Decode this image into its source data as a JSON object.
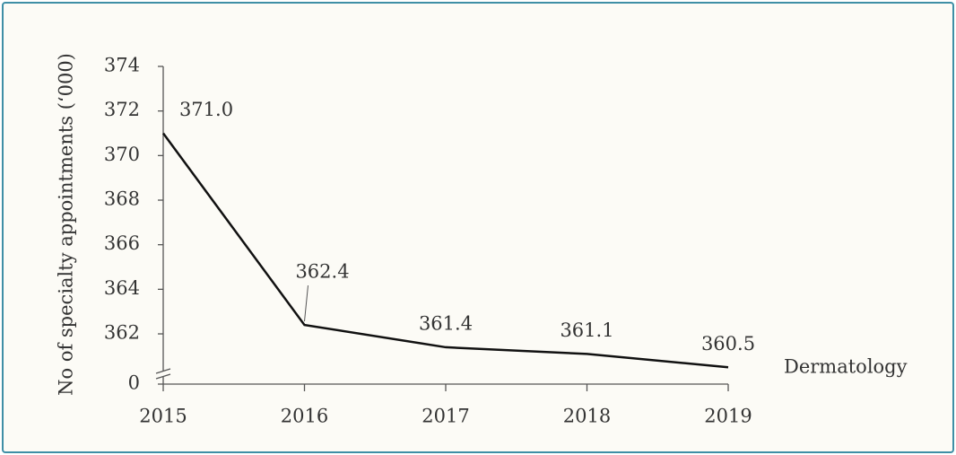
{
  "chart_data": {
    "type": "line",
    "y_label": "No of specialty appointments (‘000)",
    "x": [
      2015,
      2016,
      2017,
      2018,
      2019
    ],
    "xlim": [
      2015,
      2019
    ],
    "xticks": [
      2015,
      2016,
      2017,
      2018,
      2019
    ],
    "ylim": [
      0,
      374
    ],
    "y_break": [
      0,
      360
    ],
    "yticks": [
      0,
      362,
      364,
      366,
      368,
      370,
      372,
      374
    ],
    "series": [
      {
        "name": "Dermatology",
        "color": "#111111",
        "values": [
          371.0,
          362.4,
          361.4,
          361.1,
          360.5
        ],
        "value_labels": [
          "371.0",
          "362.4",
          "361.4",
          "361.1",
          "360.5"
        ]
      }
    ]
  }
}
